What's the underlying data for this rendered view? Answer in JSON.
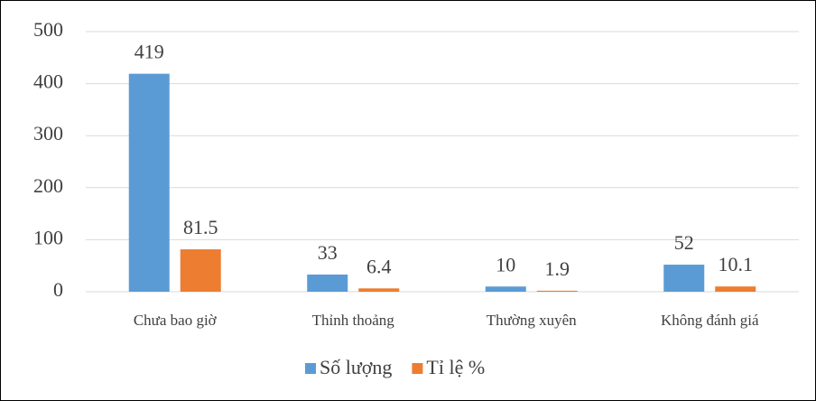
{
  "chart_data": {
    "type": "bar",
    "categories": [
      "Chưa bao giờ",
      "Thỉnh thoảng",
      "Thường xuyên",
      "Không đánh giá"
    ],
    "series": [
      {
        "name": "Số lượng",
        "color": "#5b9bd5",
        "values": [
          419,
          33,
          10,
          52
        ]
      },
      {
        "name": "Tỉ lệ %",
        "color": "#ed7d31",
        "values": [
          81.5,
          6.4,
          1.9,
          10.1
        ]
      }
    ],
    "ylim": [
      0,
      500
    ],
    "yticks": [
      0,
      100,
      200,
      300,
      400,
      500
    ],
    "grid": true,
    "legend": "bottom"
  }
}
